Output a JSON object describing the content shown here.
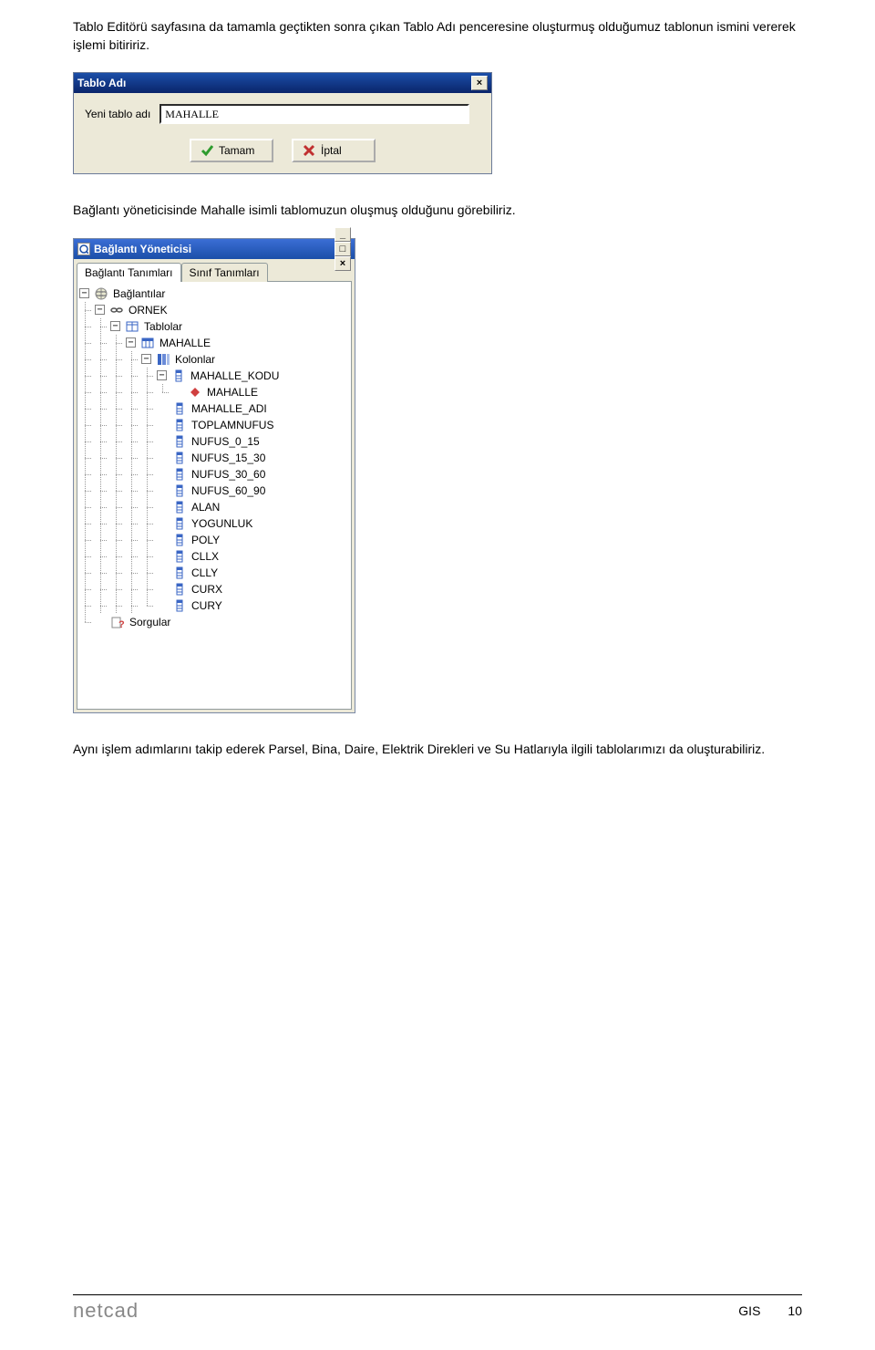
{
  "para1": "Tablo Editörü sayfasına da tamamla geçtikten sonra çıkan Tablo Adı penceresine oluşturmuş olduğumuz tablonun ismini vererek işlemi bitiririz.",
  "para2": "Bağlantı yöneticisinde Mahalle isimli tablomuzun oluşmuş olduğunu görebiliriz.",
  "para3": "Aynı işlem adımlarını takip ederek Parsel, Bina, Daire, Elektrik Direkleri ve Su Hatlarıyla ilgili tablolarımızı da oluşturabiliriz.",
  "dialog1": {
    "title": "Tablo Adı",
    "field_label": "Yeni tablo adı",
    "field_value": "MAHALLE",
    "ok_label": "Tamam",
    "cancel_label": "İptal"
  },
  "dialog2": {
    "title": "Bağlantı Yöneticisi",
    "tabs": [
      "Bağlantı Tanımları",
      "Sınıf Tanımları"
    ],
    "tree": {
      "root": "Bağlantılar",
      "conn": "ORNEK",
      "tables_label": "Tablolar",
      "table": "MAHALLE",
      "cols_label": "Kolonlar",
      "columns": [
        "MAHALLE_KODU",
        "MAHALLE",
        "MAHALLE_ADI",
        "TOPLAMNUFUS",
        "NUFUS_0_15",
        "NUFUS_15_30",
        "NUFUS_30_60",
        "NUFUS_60_90",
        "ALAN",
        "YOGUNLUK",
        "POLY",
        "CLLX",
        "CLLY",
        "CURX",
        "CURY"
      ],
      "queries": "Sorgular"
    }
  },
  "footer": {
    "logo": "netcad",
    "section": "GIS",
    "page": "10"
  },
  "colors": {
    "titlebar_top": "#1b4fa8",
    "titlebar_bottom": "#0a246a",
    "dialog_bg": "#ece9d8",
    "ok_green": "#2e9b2e",
    "cancel_red": "#c03030",
    "col_icon": "#3a66c4",
    "diamond": "#d04040"
  }
}
